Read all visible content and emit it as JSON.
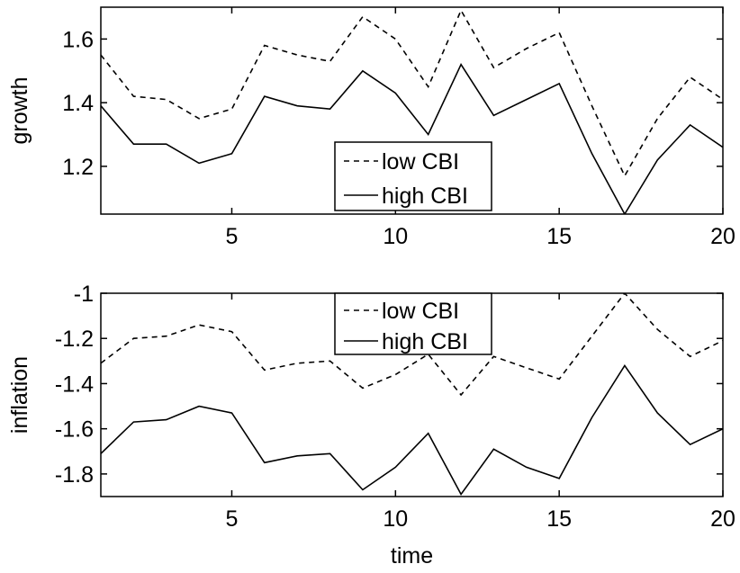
{
  "chart_data": [
    {
      "type": "line",
      "title": "",
      "xlabel": "",
      "ylabel": "growth",
      "xlim": [
        1,
        20
      ],
      "ylim": [
        1.05,
        1.7
      ],
      "xticks": [
        5,
        10,
        15,
        20
      ],
      "yticks": [
        1.2,
        1.4,
        1.6
      ],
      "xtick_labels": [
        "5",
        "10",
        "15",
        "20"
      ],
      "ytick_labels": [
        "1.2",
        "1.4",
        "1.6"
      ],
      "grid": false,
      "legend_position": "bottom-center",
      "x": [
        1,
        2,
        3,
        4,
        5,
        6,
        7,
        8,
        9,
        10,
        11,
        12,
        13,
        14,
        15,
        16,
        17,
        18,
        19,
        20
      ],
      "series": [
        {
          "name": "low CBI",
          "style": "dashed",
          "color": "#000000",
          "values": [
            1.55,
            1.42,
            1.41,
            1.35,
            1.38,
            1.58,
            1.55,
            1.53,
            1.67,
            1.6,
            1.45,
            1.69,
            1.51,
            1.57,
            1.62,
            1.39,
            1.17,
            1.35,
            1.48,
            1.41
          ]
        },
        {
          "name": "high CBI",
          "style": "solid",
          "color": "#000000",
          "values": [
            1.39,
            1.27,
            1.27,
            1.21,
            1.24,
            1.42,
            1.39,
            1.38,
            1.5,
            1.43,
            1.3,
            1.52,
            1.36,
            1.41,
            1.46,
            1.24,
            1.05,
            1.22,
            1.33,
            1.26
          ]
        }
      ]
    },
    {
      "type": "line",
      "title": "",
      "xlabel": "time",
      "ylabel": "inflation",
      "xlim": [
        1,
        20
      ],
      "ylim": [
        -1.9,
        -1.0
      ],
      "xticks": [
        5,
        10,
        15,
        20
      ],
      "yticks": [
        -1.8,
        -1.6,
        -1.4,
        -1.2,
        -1.0
      ],
      "xtick_labels": [
        "5",
        "10",
        "15",
        "20"
      ],
      "ytick_labels": [
        "-1.8",
        "-1.6",
        "-1.4",
        "-1.2",
        "-1"
      ],
      "grid": false,
      "legend_position": "top-center",
      "x": [
        1,
        2,
        3,
        4,
        5,
        6,
        7,
        8,
        9,
        10,
        11,
        12,
        13,
        14,
        15,
        16,
        17,
        18,
        19,
        20
      ],
      "series": [
        {
          "name": "low CBI",
          "style": "dashed",
          "color": "#000000",
          "values": [
            -1.31,
            -1.2,
            -1.19,
            -1.14,
            -1.17,
            -1.34,
            -1.31,
            -1.3,
            -1.42,
            -1.36,
            -1.27,
            -1.45,
            -1.28,
            -1.33,
            -1.38,
            -1.19,
            -1.0,
            -1.16,
            -1.28,
            -1.21
          ]
        },
        {
          "name": "high CBI",
          "style": "solid",
          "color": "#000000",
          "values": [
            -1.71,
            -1.57,
            -1.56,
            -1.5,
            -1.53,
            -1.75,
            -1.72,
            -1.71,
            -1.87,
            -1.77,
            -1.62,
            -1.89,
            -1.69,
            -1.77,
            -1.82,
            -1.55,
            -1.32,
            -1.53,
            -1.67,
            -1.6
          ]
        }
      ]
    }
  ]
}
